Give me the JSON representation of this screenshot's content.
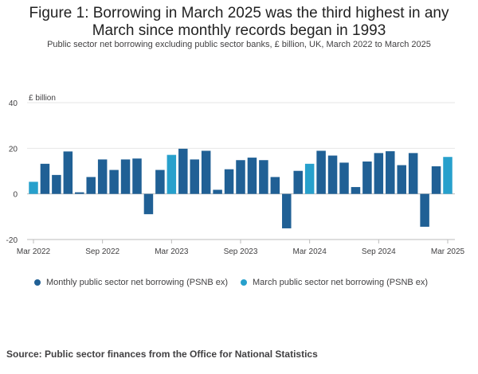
{
  "title": "Figure 1: Borrowing in March 2025 was the third highest in any March since monthly records began in 1993",
  "subtitle": "Public sector net borrowing excluding public sector banks, £ billion, UK, March 2022 to March 2025",
  "source": "Source: Public sector finances from the Office for National Statistics",
  "colors": {
    "monthly": "#206095",
    "march": "#27a0cc",
    "grid": "#e6e6e6",
    "axis": "#bbbbbb",
    "text": "#414042"
  },
  "legend": [
    {
      "label": "Monthly public sector net borrowing (PSNB ex)",
      "color": "#206095"
    },
    {
      "label": "March public sector net borrowing (PSNB ex)",
      "color": "#27a0cc"
    }
  ],
  "chart_data": {
    "type": "bar",
    "ylabel": "£ billion",
    "ylim": [
      -20,
      40
    ],
    "yticks": [
      40,
      20,
      0,
      -20
    ],
    "xtick_labels": [
      "Mar 2022",
      "Sep 2022",
      "Mar 2023",
      "Sep 2023",
      "Mar 2024",
      "Sep 2024",
      "Mar 2025"
    ],
    "categories": [
      "Mar 2022",
      "Apr 2022",
      "May 2022",
      "Jun 2022",
      "Jul 2022",
      "Aug 2022",
      "Sep 2022",
      "Oct 2022",
      "Nov 2022",
      "Dec 2022",
      "Jan 2023",
      "Feb 2023",
      "Mar 2023",
      "Apr 2023",
      "May 2023",
      "Jun 2023",
      "Jul 2023",
      "Aug 2023",
      "Sep 2023",
      "Oct 2023",
      "Nov 2023",
      "Dec 2023",
      "Jan 2024",
      "Feb 2024",
      "Mar 2024",
      "Apr 2024",
      "May 2024",
      "Jun 2024",
      "Jul 2024",
      "Aug 2024",
      "Sep 2024",
      "Oct 2024",
      "Nov 2024",
      "Dec 2024",
      "Jan 2025",
      "Feb 2025",
      "Mar 2025"
    ],
    "values": [
      5.3,
      13.2,
      8.3,
      18.6,
      0.7,
      7.4,
      15.1,
      10.5,
      15.1,
      15.5,
      -8.9,
      10.5,
      17.1,
      19.8,
      15.1,
      18.9,
      1.8,
      10.8,
      14.8,
      15.9,
      14.8,
      7.4,
      -15.1,
      10.1,
      13.2,
      18.9,
      16.8,
      13.7,
      3.0,
      14.2,
      17.9,
      18.7,
      12.6,
      17.9,
      -14.4,
      12.1,
      16.2
    ],
    "series_type": [
      "march",
      "monthly",
      "monthly",
      "monthly",
      "monthly",
      "monthly",
      "monthly",
      "monthly",
      "monthly",
      "monthly",
      "monthly",
      "monthly",
      "march",
      "monthly",
      "monthly",
      "monthly",
      "monthly",
      "monthly",
      "monthly",
      "monthly",
      "monthly",
      "monthly",
      "monthly",
      "monthly",
      "march",
      "monthly",
      "monthly",
      "monthly",
      "monthly",
      "monthly",
      "monthly",
      "monthly",
      "monthly",
      "monthly",
      "monthly",
      "monthly",
      "march"
    ],
    "grid": true,
    "legend_position": "bottom"
  }
}
